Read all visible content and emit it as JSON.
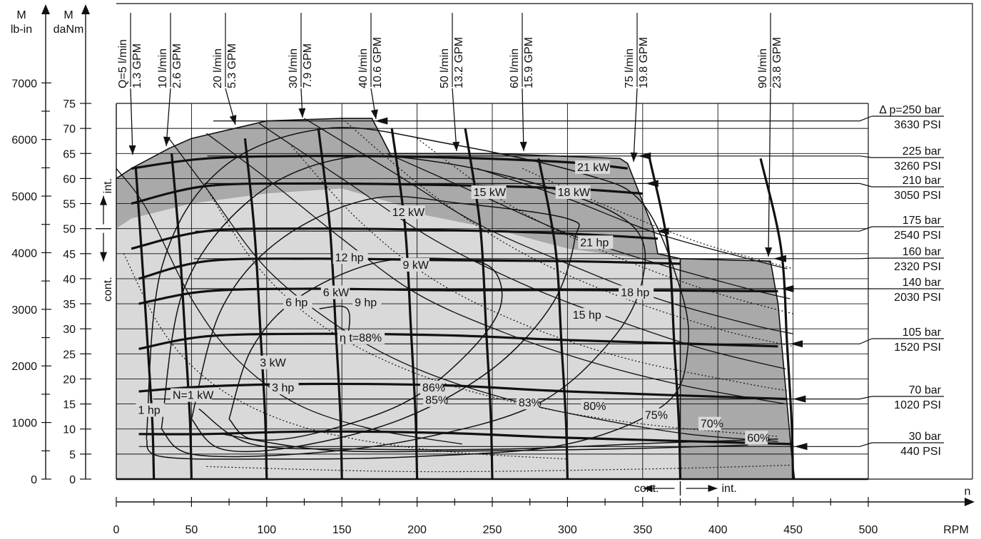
{
  "chart_data": {
    "type": "line",
    "title": "",
    "x_axis": {
      "label": "n",
      "unit": "RPM",
      "range": [
        0,
        500
      ],
      "ticks": [
        0,
        50,
        100,
        150,
        200,
        250,
        300,
        350,
        400,
        450,
        500
      ]
    },
    "y_axis_danm": {
      "label": "M",
      "unit": "daNm",
      "range": [
        0,
        75
      ],
      "ticks": [
        0,
        5,
        10,
        15,
        20,
        25,
        30,
        35,
        40,
        45,
        50,
        55,
        60,
        65,
        70,
        75
      ]
    },
    "y_axis_lbin": {
      "label": "M",
      "unit": "lb-in",
      "ticks": [
        0,
        1000,
        2000,
        3000,
        4000,
        5000,
        6000,
        7000
      ]
    },
    "region_labels": {
      "speed_cont": "cont.",
      "speed_int": "int.",
      "torque_cont": "cont.",
      "torque_int": "int.",
      "speed_boundary_rpm": 375,
      "torque_boundary_danm": 50
    },
    "pressure_lines": [
      {
        "bar": "Δ p=250 bar",
        "psi": "3630 PSI",
        "torque": 71.5
      },
      {
        "bar": "225 bar",
        "psi": "3260 PSI",
        "torque": 64.5
      },
      {
        "bar": "210 bar",
        "psi": "3050 PSI",
        "torque": 59.0
      },
      {
        "bar": "175 bar",
        "psi": "2540 PSI",
        "torque": 49.5
      },
      {
        "bar": "160 bar",
        "psi": "2320 PSI",
        "torque": 44.0
      },
      {
        "bar": "140 bar",
        "psi": "2030 PSI",
        "torque": 38.0
      },
      {
        "bar": "105 bar",
        "psi": "1520 PSI",
        "torque": 27.0
      },
      {
        "bar": "70 bar",
        "psi": "1020 PSI",
        "torque": 16.0
      },
      {
        "bar": "30 bar",
        "psi": "440 PSI",
        "torque": 6.5
      }
    ],
    "flow_lines": [
      {
        "lpm": "Q=5 l/min",
        "gpm": "1.3 GPM",
        "rpm": 25
      },
      {
        "lpm": "10 l/min",
        "gpm": "2.6 GPM",
        "rpm": 50
      },
      {
        "lpm": "20 l/min",
        "gpm": "5.3 GPM",
        "rpm": 100
      },
      {
        "lpm": "30 l/min",
        "gpm": "7.9 GPM",
        "rpm": 150
      },
      {
        "lpm": "40 l/min",
        "gpm": "10.6 GPM",
        "rpm": 200
      },
      {
        "lpm": "50 l/min",
        "gpm": "13.2 GPM",
        "rpm": 250
      },
      {
        "lpm": "60 l/min",
        "gpm": "15.9 GPM",
        "rpm": 300
      },
      {
        "lpm": "75 l/min",
        "gpm": "19.8 GPM",
        "rpm": 375
      },
      {
        "lpm": "90 l/min",
        "gpm": "23.8 GPM",
        "rpm": 450
      }
    ],
    "power_kw_labels": [
      {
        "text": "N=1 kW",
        "rpm": 37,
        "torque": 16
      },
      {
        "text": "3 kW",
        "rpm": 95,
        "torque": 22.5
      },
      {
        "text": "6 kW",
        "rpm": 137,
        "torque": 36.5
      },
      {
        "text": "9 kW",
        "rpm": 190,
        "torque": 42
      },
      {
        "text": "12 kW",
        "rpm": 183,
        "torque": 52.5
      },
      {
        "text": "15 kW",
        "rpm": 237,
        "torque": 56.5
      },
      {
        "text": "18 kW",
        "rpm": 293,
        "torque": 56.5
      },
      {
        "text": "21 kW",
        "rpm": 306,
        "torque": 61.5
      }
    ],
    "power_hp_labels": [
      {
        "text": "1 hp",
        "rpm": 14,
        "torque": 13
      },
      {
        "text": "3 hp",
        "rpm": 103,
        "torque": 17.5
      },
      {
        "text": "6 hp",
        "rpm": 112,
        "torque": 34.5
      },
      {
        "text": "9 hp",
        "rpm": 158,
        "torque": 34.5
      },
      {
        "text": "12 hp",
        "rpm": 145,
        "torque": 43.5
      },
      {
        "text": "15 hp",
        "rpm": 303,
        "torque": 32
      },
      {
        "text": "18 hp",
        "rpm": 335,
        "torque": 36.5
      },
      {
        "text": "21 hp",
        "rpm": 308,
        "torque": 46.5
      }
    ],
    "efficiency_labels": [
      {
        "text": "η t=88%",
        "rpm": 148,
        "torque": 27.5
      },
      {
        "text": "86%",
        "rpm": 203,
        "torque": 17.5
      },
      {
        "text": "85%",
        "rpm": 205,
        "torque": 15.0
      },
      {
        "text": "83%",
        "rpm": 267,
        "torque": 14.5
      },
      {
        "text": "80%",
        "rpm": 310,
        "torque": 13.8
      },
      {
        "text": "75%",
        "rpm": 351,
        "torque": 12.0
      },
      {
        "text": "70%",
        "rpm": 388,
        "torque": 10.3
      },
      {
        "text": "60%",
        "rpm": 419,
        "torque": 7.5
      }
    ],
    "operating_envelope": {
      "continuous": [
        [
          0,
          0
        ],
        [
          0,
          50
        ],
        [
          10,
          52
        ],
        [
          50,
          55
        ],
        [
          100,
          57
        ],
        [
          150,
          58
        ],
        [
          185,
          55
        ],
        [
          200,
          53
        ],
        [
          250,
          50
        ],
        [
          300,
          46
        ],
        [
          350,
          44
        ],
        [
          375,
          44
        ],
        [
          375,
          0
        ]
      ],
      "intermittent": [
        [
          0,
          50
        ],
        [
          0,
          60
        ],
        [
          10,
          62
        ],
        [
          35,
          66
        ],
        [
          50,
          68
        ],
        [
          100,
          71.5
        ],
        [
          150,
          72
        ],
        [
          170,
          72
        ],
        [
          182,
          65
        ],
        [
          250,
          65
        ],
        [
          335,
          64
        ],
        [
          340,
          63
        ],
        [
          357,
          50
        ],
        [
          360,
          45
        ],
        [
          375,
          44
        ],
        [
          435,
          43.5
        ],
        [
          440,
          35
        ],
        [
          449,
          5
        ],
        [
          451,
          0
        ],
        [
          375,
          0
        ],
        [
          375,
          44
        ],
        [
          350,
          44
        ],
        [
          300,
          46
        ],
        [
          250,
          50
        ],
        [
          200,
          53
        ],
        [
          185,
          55
        ],
        [
          150,
          58
        ],
        [
          100,
          57
        ],
        [
          50,
          55
        ],
        [
          10,
          52
        ]
      ]
    }
  }
}
